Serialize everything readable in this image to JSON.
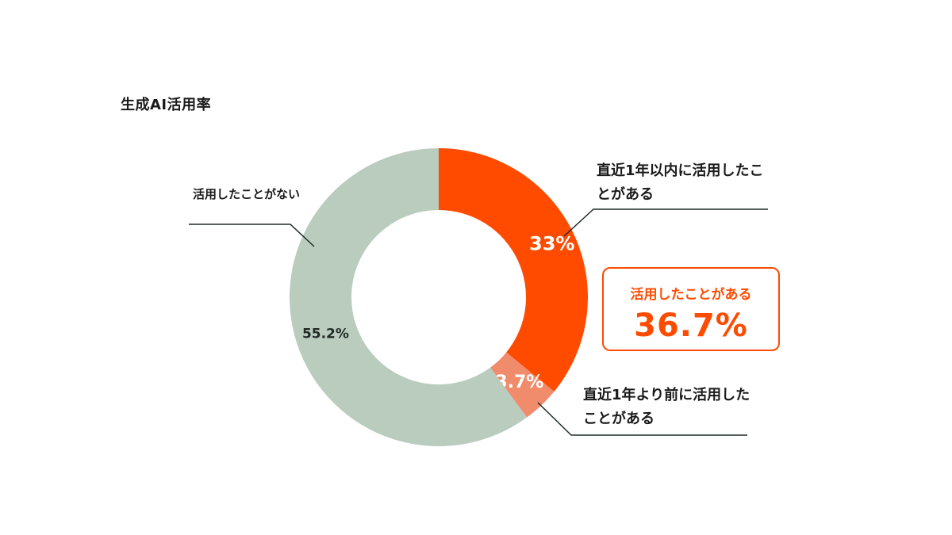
{
  "chart_data": {
    "type": "pie",
    "title": "生成AI活用率",
    "slices": [
      {
        "label": "直近1年以内に活用したことがある",
        "value": 33,
        "value_text": "33%",
        "color": "#ff4b00",
        "text_color": "#ffffff"
      },
      {
        "label": "直近1年より前に活用したことがある",
        "value": 3.7,
        "value_text": "3.7%",
        "color": "#f08b6b",
        "text_color": "#ffffff"
      },
      {
        "label": "活用したことがない",
        "value": 55.2,
        "value_text": "55.2%",
        "color": "#b9ccbe",
        "text_color": "#222b26"
      }
    ],
    "summary": {
      "label": "活用したことがある",
      "value_text": "36.7%"
    }
  },
  "labels": {
    "recent": "直近1年以内に活用したことがある",
    "past": "直近1年より前に活用したことがある",
    "never": "活用したことがない"
  },
  "colors": {
    "accent": "#ff4b00",
    "leader_line": "#1f2d27"
  }
}
